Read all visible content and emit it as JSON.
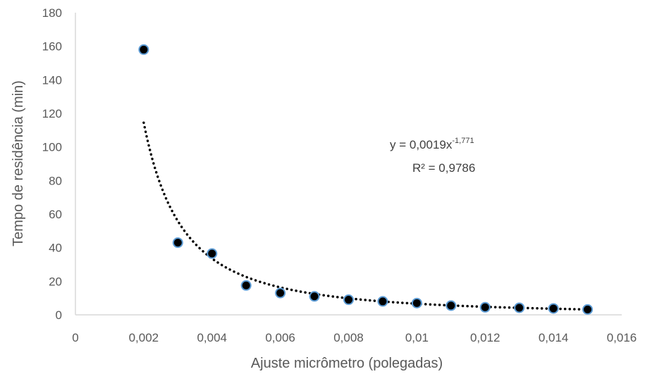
{
  "chart_data": {
    "type": "scatter",
    "title": "",
    "xlabel": "Ajuste micrômetro (polegadas)",
    "ylabel": "Tempo de residência (min)",
    "xlim": [
      0,
      0.016
    ],
    "ylim": [
      0,
      180
    ],
    "x_ticks": [
      "0",
      "0,002",
      "0,004",
      "0,006",
      "0,008",
      "0,01",
      "0,012",
      "0,014",
      "0,016"
    ],
    "y_ticks": [
      "0",
      "20",
      "40",
      "60",
      "80",
      "100",
      "120",
      "140",
      "160",
      "180"
    ],
    "grid": false,
    "legend": "none",
    "series": [
      {
        "points": [
          {
            "x": 0.002,
            "y": 158
          },
          {
            "x": 0.003,
            "y": 43
          },
          {
            "x": 0.004,
            "y": 36.5
          },
          {
            "x": 0.005,
            "y": 17.5
          },
          {
            "x": 0.006,
            "y": 13
          },
          {
            "x": 0.007,
            "y": 11
          },
          {
            "x": 0.008,
            "y": 9
          },
          {
            "x": 0.009,
            "y": 8
          },
          {
            "x": 0.01,
            "y": 7
          },
          {
            "x": 0.011,
            "y": 5.5
          },
          {
            "x": 0.012,
            "y": 4.5
          },
          {
            "x": 0.013,
            "y": 4.2
          },
          {
            "x": 0.014,
            "y": 3.8
          },
          {
            "x": 0.015,
            "y": 3.2
          }
        ],
        "marker_color": "#000000",
        "marker_edge_color": "#5b9bd5"
      }
    ],
    "trendline": {
      "type": "power",
      "coefficient": 0.0019,
      "exponent": -1.771,
      "x_range": [
        0.002,
        0.015
      ],
      "style": "dotted",
      "color": "#000000",
      "equation_prefix": "y = 0,0019x",
      "equation_exponent": "-1,771",
      "r_squared_label": "R² = 0,9786"
    }
  }
}
